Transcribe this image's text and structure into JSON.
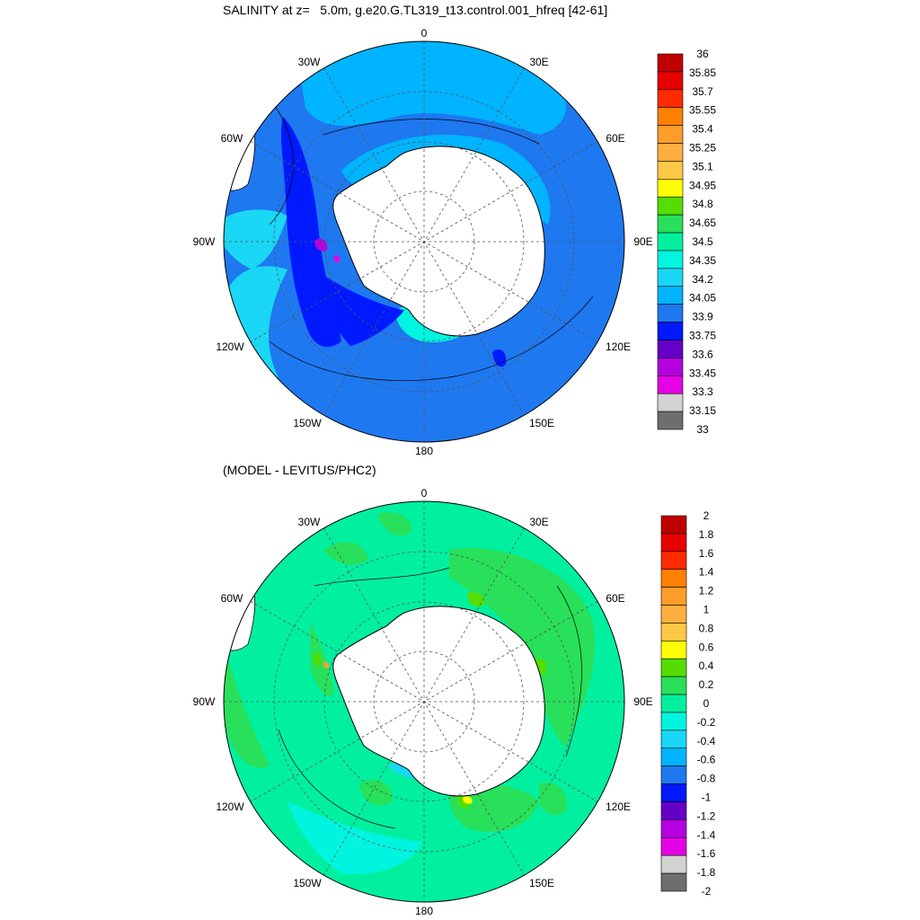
{
  "top_panel": {
    "title": "SALINITY at z=   5.0m, g.e20.G.TL319_t13.control.001_hfreq [42-61]",
    "colorbar": {
      "levels": [
        "36",
        "35.85",
        "35.7",
        "35.55",
        "35.4",
        "35.25",
        "35.1",
        "34.95",
        "34.8",
        "34.65",
        "34.5",
        "34.35",
        "34.2",
        "34.05",
        "33.9",
        "33.75",
        "33.6",
        "33.45",
        "33.3",
        "33.15",
        "33"
      ],
      "colors": [
        "#c00000",
        "#e60000",
        "#ff2a00",
        "#ff8000",
        "#ff9d2a",
        "#ffaf3e",
        "#ffc846",
        "#ffff00",
        "#55dd00",
        "#28e05a",
        "#00f0a0",
        "#00f5e0",
        "#19d7f5",
        "#00b4ff",
        "#1e78f0",
        "#0019ff",
        "#6400c8",
        "#b400e0",
        "#e600e6",
        "#d2d2d2",
        "#6e6e6e"
      ]
    },
    "longitude_labels": [
      "0",
      "30E",
      "60E",
      "90E",
      "120E",
      "150E",
      "180",
      "150W",
      "120W",
      "90W",
      "60W",
      "30W"
    ]
  },
  "bottom_panel": {
    "title": "(MODEL - LEVITUS/PHC2)",
    "colorbar": {
      "levels": [
        "2",
        "1.8",
        "1.6",
        "1.4",
        "1.2",
        "1",
        "0.8",
        "0.6",
        "0.4",
        "0.2",
        "0",
        "-0.2",
        "-0.4",
        "-0.6",
        "-0.8",
        "-1",
        "-1.2",
        "-1.4",
        "-1.6",
        "-1.8",
        "-2"
      ],
      "colors": [
        "#c00000",
        "#e60000",
        "#ff2a00",
        "#ff8000",
        "#ff9d2a",
        "#ffaf3e",
        "#ffc846",
        "#ffff00",
        "#55dd00",
        "#28e05a",
        "#00f0a0",
        "#00f5e0",
        "#19d7f5",
        "#00b4ff",
        "#1e78f0",
        "#0019ff",
        "#6400c8",
        "#b400e0",
        "#e600e6",
        "#d2d2d2",
        "#6e6e6e"
      ]
    },
    "longitude_labels": [
      "0",
      "30E",
      "60E",
      "90E",
      "120E",
      "150E",
      "180",
      "150W",
      "120W",
      "90W",
      "60W",
      "30W"
    ]
  },
  "colors": {
    "land": "#ffffff",
    "grid": "#555555",
    "contour": "#000000"
  }
}
